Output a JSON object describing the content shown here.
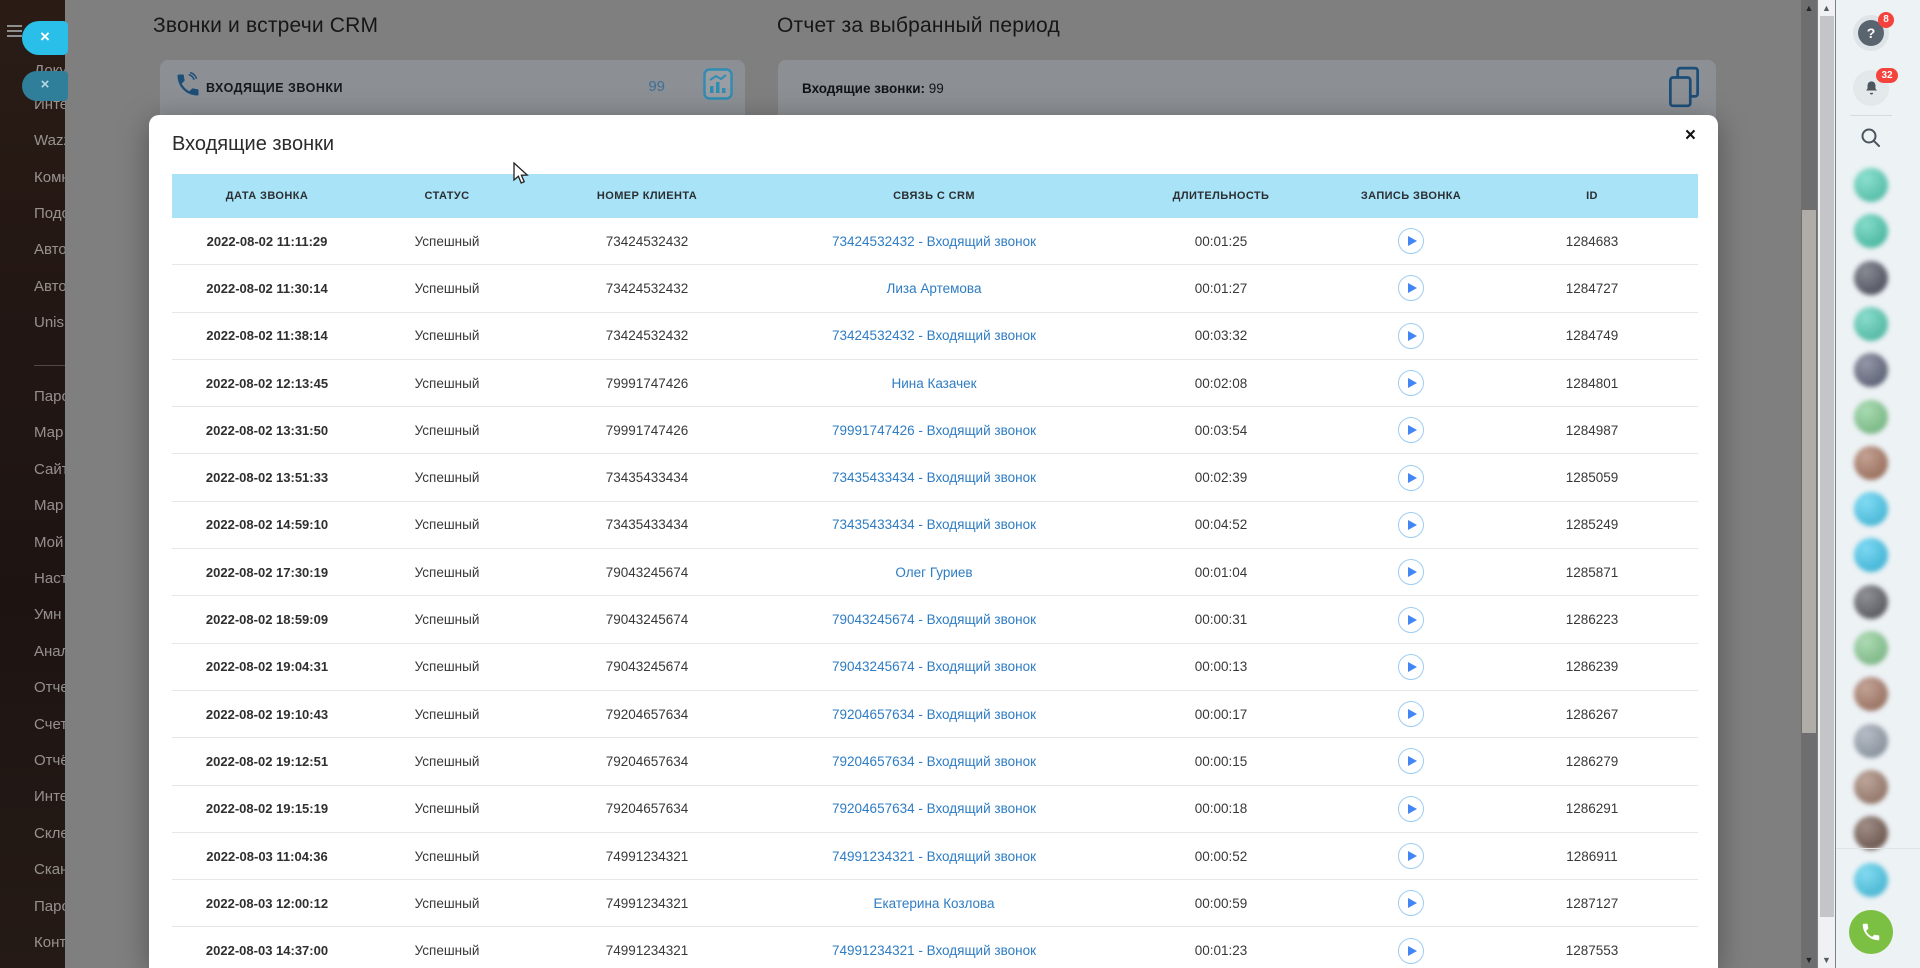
{
  "background": {
    "calls_heading": "Звонки и встречи CRM",
    "report_heading": "Отчет за выбранный период",
    "incoming_calls_panel": {
      "label": "ВХОДЯЩИЕ ЗВОНКИ",
      "count": "99"
    },
    "report_panel": {
      "label": "Входящие звонки:",
      "value": "99"
    }
  },
  "sidebar": {
    "hidden_item": "Доку",
    "close_label": "×",
    "items_top": [
      "Инте",
      "Wazz",
      "Комн",
      "Подо",
      "Авто",
      "Авто",
      "Unis"
    ],
    "items_bottom": [
      "Паро",
      "Мар",
      "Сайт",
      "Мар",
      "Мой",
      "Наст",
      "Умн",
      "Анал",
      "Отче",
      "Счет",
      "Отчё",
      "Инте",
      "Скле",
      "Скан",
      "Паро",
      "Конт"
    ]
  },
  "modal": {
    "title": "Входящие звонки",
    "close_label": "×",
    "table": {
      "columns": [
        "ДАТА ЗВОНКА",
        "СТАТУС",
        "НОМЕР КЛИЕНТА",
        "СВЯЗЬ С CRM",
        "ДЛИТЕЛЬНОСТЬ",
        "ЗАПИСЬ ЗВОНКА",
        "ID"
      ],
      "rows": [
        {
          "date": "2022-08-02 11:11:29",
          "status": "Успешный",
          "number": "73424532432",
          "crm": "73424532432 - Входящий звонок",
          "duration": "00:01:25",
          "id": "1284683"
        },
        {
          "date": "2022-08-02 11:30:14",
          "status": "Успешный",
          "number": "73424532432",
          "crm": "Лиза Артемова",
          "duration": "00:01:27",
          "id": "1284727"
        },
        {
          "date": "2022-08-02 11:38:14",
          "status": "Успешный",
          "number": "73424532432",
          "crm": "73424532432 - Входящий звонок",
          "duration": "00:03:32",
          "id": "1284749"
        },
        {
          "date": "2022-08-02 12:13:45",
          "status": "Успешный",
          "number": "79991747426",
          "crm": "Нина Казачек",
          "duration": "00:02:08",
          "id": "1284801"
        },
        {
          "date": "2022-08-02 13:31:50",
          "status": "Успешный",
          "number": "79991747426",
          "crm": "79991747426 - Входящий звонок",
          "duration": "00:03:54",
          "id": "1284987"
        },
        {
          "date": "2022-08-02 13:51:33",
          "status": "Успешный",
          "number": "73435433434",
          "crm": "73435433434 - Входящий звонок",
          "duration": "00:02:39",
          "id": "1285059"
        },
        {
          "date": "2022-08-02 14:59:10",
          "status": "Успешный",
          "number": "73435433434",
          "crm": "73435433434 - Входящий звонок",
          "duration": "00:04:52",
          "id": "1285249"
        },
        {
          "date": "2022-08-02 17:30:19",
          "status": "Успешный",
          "number": "79043245674",
          "crm": "Олег Гуриев",
          "duration": "00:01:04",
          "id": "1285871"
        },
        {
          "date": "2022-08-02 18:59:09",
          "status": "Успешный",
          "number": "79043245674",
          "crm": "79043245674 - Входящий звонок",
          "duration": "00:00:31",
          "id": "1286223"
        },
        {
          "date": "2022-08-02 19:04:31",
          "status": "Успешный",
          "number": "79043245674",
          "crm": "79043245674 - Входящий звонок",
          "duration": "00:00:13",
          "id": "1286239"
        },
        {
          "date": "2022-08-02 19:10:43",
          "status": "Успешный",
          "number": "79204657634",
          "crm": "79204657634 - Входящий звонок",
          "duration": "00:00:17",
          "id": "1286267"
        },
        {
          "date": "2022-08-02 19:12:51",
          "status": "Успешный",
          "number": "79204657634",
          "crm": "79204657634 - Входящий звонок",
          "duration": "00:00:15",
          "id": "1286279"
        },
        {
          "date": "2022-08-02 19:15:19",
          "status": "Успешный",
          "number": "79204657634",
          "crm": "79204657634 - Входящий звонок",
          "duration": "00:00:18",
          "id": "1286291"
        },
        {
          "date": "2022-08-03 11:04:36",
          "status": "Успешный",
          "number": "74991234321",
          "crm": "74991234321 - Входящий звонок",
          "duration": "00:00:52",
          "id": "1286911"
        },
        {
          "date": "2022-08-03 12:00:12",
          "status": "Успешный",
          "number": "74991234321",
          "crm": "Екатерина Козлова",
          "duration": "00:00:59",
          "id": "1287127"
        },
        {
          "date": "2022-08-03 14:37:00",
          "status": "Успешный",
          "number": "74991234321",
          "crm": "74991234321 - Входящий звонок",
          "duration": "00:01:23",
          "id": "1287553"
        }
      ]
    }
  },
  "right_rail": {
    "help_badge": "8",
    "notifications_badge": "32",
    "avatar_colors": [
      "#4fd0b5",
      "#43c9ad",
      "#4a4d5c",
      "#4ccab1",
      "#5a6078",
      "#7cc98a",
      "#a4705a",
      "#3fc9ef",
      "#38c5ee",
      "#55575f",
      "#82c98d",
      "#a3735f",
      "#8f9aa8",
      "#9a7766",
      "#6d5247",
      "#41c8ea"
    ]
  },
  "colors": {
    "overlay": "#7f7f7f",
    "table_header_bg": "#a8e3f7",
    "link": "#2e7cc3",
    "play_icon": "#4285f4",
    "badge_red": "#f4433c",
    "sidebar_active_button": "#29bfe8",
    "rail_bg": "#edf2f5",
    "call_button_green": "#7bc043"
  }
}
